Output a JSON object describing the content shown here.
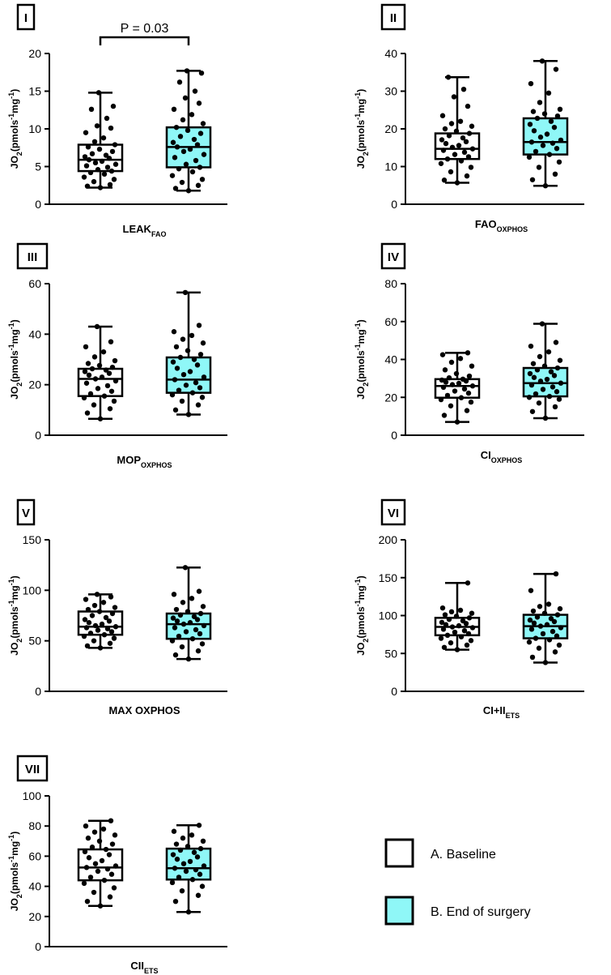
{
  "chart_data": [
    {
      "panel": "I",
      "type": "box",
      "title": "",
      "xlabel": "LEAK",
      "xlabel_sub": "FAO",
      "ylabel": "JO2(pmols-1mg-1)",
      "ylim": [
        0,
        20
      ],
      "yticks": [
        0,
        5,
        10,
        15,
        20
      ],
      "annotation": "P = 0.03",
      "series": [
        {
          "name": "A. Baseline",
          "min": 2.2,
          "q1": 4.4,
          "median": 5.9,
          "q3": 7.9,
          "max": 14.8,
          "points": [
            2.2,
            2.4,
            2.6,
            3.0,
            3.3,
            3.6,
            4.0,
            4.2,
            4.4,
            4.6,
            4.9,
            5.1,
            5.3,
            5.5,
            5.7,
            5.9,
            6.1,
            6.3,
            6.5,
            6.7,
            7.0,
            7.3,
            7.6,
            7.9,
            8.3,
            8.8,
            9.5,
            10.1,
            10.4,
            11.4,
            12.6,
            13.0,
            14.8
          ]
        },
        {
          "name": "B. End of surgery",
          "min": 1.8,
          "q1": 4.9,
          "median": 7.6,
          "q3": 10.2,
          "max": 17.7,
          "points": [
            1.8,
            2.1,
            2.5,
            2.9,
            3.3,
            3.8,
            4.3,
            4.7,
            4.9,
            5.3,
            5.8,
            6.2,
            6.6,
            7.0,
            7.3,
            7.6,
            7.9,
            8.2,
            8.6,
            9.0,
            9.4,
            9.8,
            10.2,
            10.7,
            11.2,
            11.9,
            12.6,
            13.4,
            14.1,
            15.0,
            16.2,
            17.4,
            17.7
          ]
        }
      ]
    },
    {
      "panel": "II",
      "type": "box",
      "title": "",
      "xlabel": "FAO",
      "xlabel_sub": "OXPHOS",
      "ylabel": "JO2(pmols-1mg-1)",
      "ylim": [
        0,
        40
      ],
      "yticks": [
        0,
        10,
        20,
        30,
        40
      ],
      "series": [
        {
          "name": "A. Baseline",
          "min": 5.7,
          "q1": 12.0,
          "median": 14.7,
          "q3": 18.8,
          "max": 33.7,
          "points": [
            5.7,
            6.4,
            7.5,
            8.6,
            9.8,
            10.8,
            11.5,
            12.0,
            12.6,
            13.2,
            13.8,
            14.3,
            14.7,
            15.1,
            15.6,
            16.1,
            16.6,
            17.1,
            17.6,
            18.2,
            18.8,
            19.4,
            20.0,
            20.7,
            21.4,
            22.0,
            23.5,
            26.0,
            28.5,
            30.5,
            33.7
          ]
        },
        {
          "name": "B. End of surgery",
          "min": 4.9,
          "q1": 13.2,
          "median": 16.5,
          "q3": 22.8,
          "max": 38.0,
          "points": [
            4.9,
            6.5,
            8.0,
            9.8,
            11.2,
            12.5,
            13.2,
            14.0,
            14.8,
            15.6,
            16.2,
            16.5,
            17.0,
            17.8,
            18.6,
            19.5,
            20.4,
            21.2,
            22.0,
            22.8,
            23.4,
            24.0,
            24.6,
            25.2,
            27.0,
            29.5,
            32.0,
            35.8,
            38.0
          ]
        }
      ]
    },
    {
      "panel": "III",
      "type": "box",
      "title": "",
      "xlabel": "MOP",
      "xlabel_sub": "OXPHOS",
      "ylabel": "JO2(pmols-1mg-1)",
      "ylim": [
        0,
        60
      ],
      "yticks": [
        0,
        20,
        40,
        60
      ],
      "series": [
        {
          "name": "A. Baseline",
          "min": 6.5,
          "q1": 15.5,
          "median": 22.3,
          "q3": 26.3,
          "max": 43.0,
          "points": [
            6.5,
            8.8,
            10.5,
            12.0,
            13.5,
            14.8,
            15.5,
            16.4,
            17.4,
            18.5,
            19.6,
            20.6,
            21.5,
            22.3,
            23.0,
            23.8,
            24.5,
            25.2,
            25.8,
            26.3,
            26.9,
            27.6,
            28.4,
            29.5,
            31.0,
            33.0,
            35.0,
            37.0,
            43.0
          ]
        },
        {
          "name": "B. End of surgery",
          "min": 8.2,
          "q1": 16.8,
          "median": 22.0,
          "q3": 30.8,
          "max": 56.5,
          "points": [
            8.2,
            10.0,
            12.0,
            13.5,
            15.0,
            16.0,
            16.8,
            17.8,
            18.8,
            19.8,
            20.8,
            22.0,
            23.0,
            24.0,
            25.2,
            26.5,
            27.8,
            29.0,
            30.0,
            30.8,
            32.0,
            33.5,
            35.0,
            36.5,
            38.0,
            39.5,
            41.0,
            43.5,
            56.5
          ]
        }
      ]
    },
    {
      "panel": "IV",
      "type": "box",
      "title": "",
      "xlabel": "CI",
      "xlabel_sub": "OXPHOS",
      "ylabel": "JO2(pmols-1mg-1)",
      "ylim": [
        0,
        80
      ],
      "yticks": [
        0,
        20,
        40,
        60,
        80
      ],
      "series": [
        {
          "name": "A. Baseline",
          "min": 7.0,
          "q1": 19.8,
          "median": 26.0,
          "q3": 29.6,
          "max": 43.5,
          "points": [
            7.0,
            10.5,
            13.0,
            15.5,
            17.5,
            18.8,
            19.8,
            21.0,
            22.2,
            23.3,
            24.4,
            25.3,
            26.0,
            26.7,
            27.4,
            28.0,
            28.6,
            29.1,
            29.6,
            30.3,
            31.2,
            32.5,
            34.5,
            36.5,
            38.5,
            40.5,
            42.5,
            43.5
          ]
        },
        {
          "name": "B. End of surgery",
          "min": 9.0,
          "q1": 20.5,
          "median": 27.5,
          "q3": 35.5,
          "max": 58.8,
          "points": [
            9.0,
            12.5,
            15.0,
            17.0,
            19.0,
            20.0,
            20.5,
            21.8,
            23.0,
            24.2,
            25.5,
            26.5,
            27.5,
            28.5,
            29.5,
            30.5,
            31.5,
            32.5,
            33.5,
            34.5,
            35.5,
            36.5,
            37.8,
            39.5,
            41.5,
            44.0,
            47.0,
            49.0,
            58.8
          ]
        }
      ]
    },
    {
      "panel": "V",
      "type": "box",
      "title": "",
      "xlabel": "MAX OXPHOS",
      "xlabel_sub": "",
      "ylabel": "JO2(pmols-1mg-1)",
      "ylim": [
        0,
        150
      ],
      "yticks": [
        0,
        50,
        100,
        150
      ],
      "series": [
        {
          "name": "A. Baseline",
          "min": 43.0,
          "q1": 56.0,
          "median": 64.0,
          "q3": 79.0,
          "max": 96.0,
          "points": [
            43.0,
            45.0,
            47.5,
            50.0,
            52.5,
            54.5,
            56.0,
            57.5,
            59.0,
            60.5,
            62.0,
            63.0,
            64.0,
            65.0,
            66.5,
            68.0,
            69.5,
            71.0,
            73.0,
            75.0,
            77.0,
            79.0,
            81.0,
            83.0,
            85.0,
            88.0,
            91.0,
            93.5,
            96.0
          ]
        },
        {
          "name": "B. End of surgery",
          "min": 32.0,
          "q1": 52.0,
          "median": 66.5,
          "q3": 77.0,
          "max": 122.5,
          "points": [
            32.0,
            36.0,
            40.0,
            44.0,
            47.0,
            50.0,
            52.0,
            54.5,
            57.0,
            59.0,
            61.0,
            63.0,
            65.0,
            66.5,
            68.0,
            69.5,
            71.0,
            72.5,
            74.0,
            75.5,
            77.0,
            79.0,
            81.0,
            84.0,
            88.0,
            92.0,
            96.0,
            99.0,
            122.5
          ]
        }
      ]
    },
    {
      "panel": "VI",
      "type": "box",
      "title": "",
      "xlabel": "CI+II",
      "xlabel_sub": "ETS",
      "ylabel": "JO2(pmols-1mg-1)",
      "ylim": [
        0,
        200
      ],
      "yticks": [
        0,
        50,
        100,
        150,
        200
      ],
      "series": [
        {
          "name": "A. Baseline",
          "min": 55.0,
          "q1": 74.0,
          "median": 85.0,
          "q3": 97.0,
          "max": 143.0,
          "points": [
            55.0,
            58.0,
            61.0,
            64.0,
            67.0,
            70.0,
            72.0,
            74.0,
            76.0,
            78.0,
            80.0,
            82.0,
            84.0,
            85.0,
            86.5,
            88.0,
            89.5,
            91.0,
            93.0,
            95.0,
            97.0,
            99.0,
            101.0,
            103.0,
            105.0,
            107.0,
            110.0,
            143.0
          ]
        },
        {
          "name": "B. End of surgery",
          "min": 38.0,
          "q1": 70.0,
          "median": 86.0,
          "q3": 101.0,
          "max": 155.0,
          "points": [
            38.0,
            45.0,
            52.0,
            57.0,
            61.0,
            65.0,
            68.0,
            70.0,
            73.0,
            76.0,
            79.0,
            82.0,
            84.0,
            86.0,
            88.0,
            90.0,
            92.0,
            94.0,
            96.0,
            98.0,
            101.0,
            103.0,
            106.0,
            109.0,
            112.0,
            115.0,
            133.0,
            155.0
          ]
        }
      ]
    },
    {
      "panel": "VII",
      "type": "box",
      "title": "",
      "xlabel": "CII",
      "xlabel_sub": "ETS",
      "ylabel": "JO2(pmols-1mg-1)",
      "ylim": [
        0,
        100
      ],
      "yticks": [
        0,
        20,
        40,
        60,
        80,
        100
      ],
      "series": [
        {
          "name": "A. Baseline",
          "min": 27.0,
          "q1": 44.0,
          "median": 52.5,
          "q3": 64.5,
          "max": 83.5,
          "points": [
            27.0,
            30.0,
            33.0,
            36.0,
            39.0,
            42.0,
            44.0,
            46.0,
            48.0,
            50.0,
            51.5,
            52.5,
            53.5,
            55.0,
            57.0,
            59.0,
            61.0,
            63.0,
            64.5,
            66.0,
            68.0,
            70.0,
            72.0,
            74.0,
            76.0,
            78.0,
            80.0,
            83.5
          ]
        },
        {
          "name": "B. End of surgery",
          "min": 23.0,
          "q1": 44.5,
          "median": 52.0,
          "q3": 65.0,
          "max": 80.5,
          "points": [
            23.0,
            30.0,
            34.0,
            37.0,
            40.0,
            42.5,
            44.5,
            46.0,
            48.0,
            50.0,
            51.0,
            52.0,
            53.5,
            55.0,
            56.5,
            58.0,
            59.5,
            61.0,
            62.5,
            64.0,
            65.0,
            66.5,
            68.0,
            70.0,
            72.0,
            74.0,
            76.5,
            80.5
          ]
        }
      ]
    }
  ],
  "legend": {
    "items": [
      {
        "label": "A. Baseline",
        "fill": "#ffffff"
      },
      {
        "label": "B. End of surgery",
        "fill": "#8ff7f7"
      }
    ]
  },
  "colors": {
    "baseline_fill": "#ffffff",
    "surgery_fill": "#8ff7f7",
    "ink": "#000000"
  }
}
